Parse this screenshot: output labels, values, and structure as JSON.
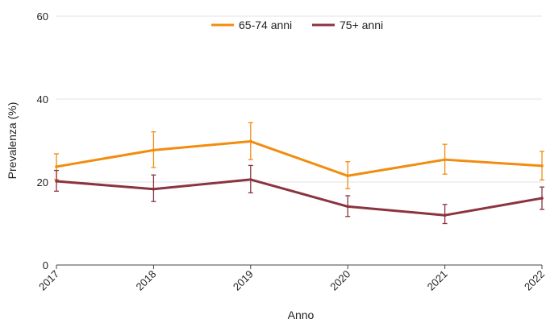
{
  "chart_data": {
    "type": "line",
    "title": "",
    "xlabel": "Anno",
    "ylabel": "Prevalenza (%)",
    "categories": [
      "2017",
      "2018",
      "2019",
      "2020",
      "2021",
      "2022"
    ],
    "ylim": [
      0,
      60
    ],
    "yticks": [
      "0",
      "20",
      "40",
      "60"
    ],
    "grid": true,
    "legend_position": "top",
    "series": [
      {
        "name": "65-74 anni",
        "color": "#F28C0F",
        "values": [
          23.7,
          27.7,
          29.8,
          21.5,
          25.4,
          23.9
        ],
        "ci_low": [
          20.6,
          23.5,
          25.4,
          18.4,
          21.9,
          20.5
        ],
        "ci_high": [
          26.8,
          32.1,
          34.3,
          24.9,
          29.1,
          27.4
        ]
      },
      {
        "name": "75+ anni",
        "color": "#8B3440",
        "values": [
          20.2,
          18.3,
          20.6,
          14.1,
          12.0,
          16.1
        ],
        "ci_low": [
          17.8,
          15.3,
          17.4,
          11.7,
          10.0,
          13.4
        ],
        "ci_high": [
          22.8,
          21.7,
          24.0,
          16.7,
          14.6,
          18.8
        ]
      }
    ]
  }
}
